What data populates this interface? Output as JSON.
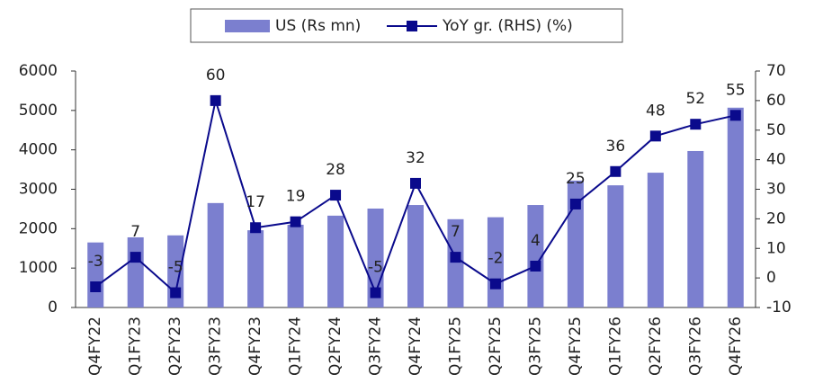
{
  "chart_data": {
    "type": "bar_line",
    "categories": [
      "Q4FY22",
      "Q1FY23",
      "Q2FY23",
      "Q3FY23",
      "Q4FY23",
      "Q1FY24",
      "Q2FY24",
      "Q3FY24",
      "Q4FY24",
      "Q1FY25",
      "Q2FY25",
      "Q3FY25",
      "Q4FY25",
      "Q1FY26",
      "Q2FY26",
      "Q3FY26",
      "Q4FY26"
    ],
    "series": [
      {
        "name": "US (Rs mn)",
        "color": "#7b7fcf",
        "type": "bar",
        "values": [
          1650,
          1780,
          1830,
          2650,
          1960,
          2100,
          2330,
          2510,
          2600,
          2240,
          2290,
          2600,
          3220,
          3100,
          3420,
          3970,
          5070
        ]
      },
      {
        "name": "YoY gr. (RHS) (%)",
        "color": "#0a0a8c",
        "type": "line",
        "axis": "y2",
        "values": [
          -3,
          7,
          -5,
          60,
          17,
          19,
          28,
          -5,
          32,
          7,
          -2,
          4,
          25,
          36,
          48,
          52,
          55
        ]
      }
    ],
    "ylim": [
      0,
      6000
    ],
    "yticks": [
      0,
      1000,
      2000,
      3000,
      4000,
      5000,
      6000
    ],
    "y2lim": [
      -10,
      70
    ],
    "y2ticks": [
      -10,
      0,
      10,
      20,
      30,
      40,
      50,
      60,
      70
    ],
    "legend": "top"
  }
}
